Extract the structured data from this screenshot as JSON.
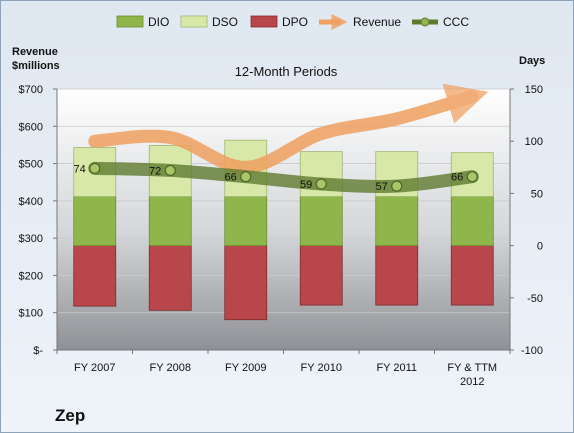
{
  "company": "Zep",
  "chart_data": {
    "type": "bar",
    "title": "12-Month Periods",
    "left_axis_label_line1": "Revenue",
    "left_axis_label_line2": "$millions",
    "right_axis_label": "Days",
    "categories": [
      {
        "line1": "FY 2007",
        "line2": ""
      },
      {
        "line1": "FY 2008",
        "line2": ""
      },
      {
        "line1": "FY 2009",
        "line2": ""
      },
      {
        "line1": "FY 2010",
        "line2": ""
      },
      {
        "line1": "FY 2011",
        "line2": ""
      },
      {
        "line1": "FY & TTM",
        "line2": "2012"
      }
    ],
    "left_ticks": [
      "$-",
      "$100",
      "$200",
      "$300",
      "$400",
      "$500",
      "$600",
      "$700"
    ],
    "right_ticks": [
      "-100",
      "-50",
      "0",
      "50",
      "100",
      "150"
    ],
    "ylim_days": [
      -100,
      150
    ],
    "ylim_revenue": [
      0,
      700
    ],
    "series": [
      {
        "name": "DIO",
        "values": [
          47,
          47,
          47,
          47,
          47,
          47
        ]
      },
      {
        "name": "DSO",
        "values": [
          47,
          49,
          54,
          43,
          43,
          42
        ]
      },
      {
        "name": "DPO",
        "values": [
          -58,
          -62,
          -71,
          -57,
          -57,
          -57
        ]
      },
      {
        "name": "Revenue",
        "values": [
          560,
          570,
          490,
          580,
          620,
          680
        ]
      },
      {
        "name": "CCC",
        "values": [
          74,
          72,
          66,
          59,
          57,
          66
        ]
      }
    ],
    "ccc_labels": [
      "74",
      "72",
      "66",
      "59",
      "57",
      "66"
    ],
    "legend_position": "top",
    "colors": {
      "DIO": "#8fb64a",
      "DSO": "#d8e8a8",
      "DPO": "#b8464a",
      "Revenue": "#f0a060",
      "CCC": "#5f7a2f"
    }
  }
}
